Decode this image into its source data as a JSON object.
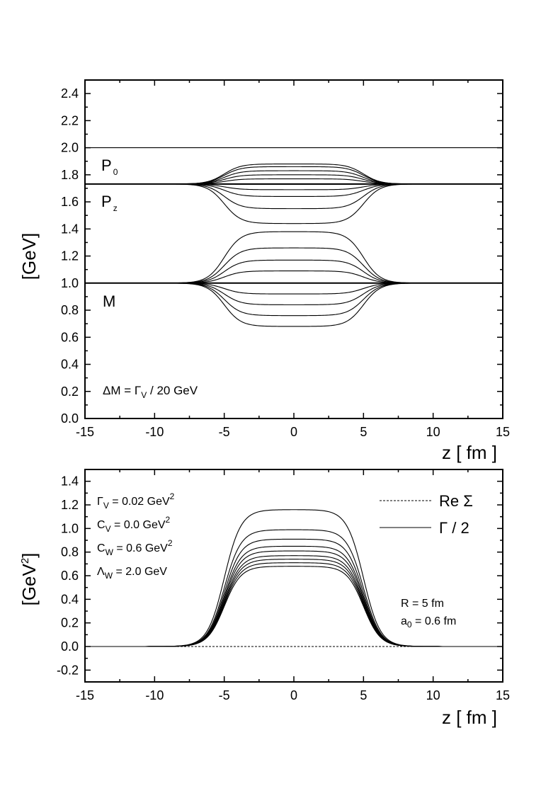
{
  "chart_data": [
    {
      "type": "line",
      "xlabel": "z [ fm ]",
      "ylabel": "[GeV]",
      "xlim": [
        -15,
        15
      ],
      "ylim": [
        0.0,
        2.5
      ],
      "xticks": [
        "-15",
        "-10",
        "-5",
        "0",
        "5",
        "10",
        "15"
      ],
      "yticks": [
        "0.0",
        "0.2",
        "0.4",
        "0.6",
        "0.8",
        "1.0",
        "1.2",
        "1.4",
        "1.6",
        "1.8",
        "2.0",
        "2.2",
        "2.4"
      ],
      "legend": "none",
      "grid": false,
      "profile": {
        "R": 5,
        "a0": 0.6
      },
      "series": [
        {
          "group": "P0",
          "y_outside": 2.0,
          "y_center": 2.0,
          "style": "thin"
        },
        {
          "group": "P0",
          "y_outside": 1.732,
          "y_center": 1.88,
          "style": "thin"
        },
        {
          "group": "P0",
          "y_outside": 1.732,
          "y_center": 1.86,
          "style": "thin"
        },
        {
          "group": "P0",
          "y_outside": 1.732,
          "y_center": 1.83,
          "style": "thin"
        },
        {
          "group": "P0",
          "y_outside": 1.732,
          "y_center": 1.8,
          "style": "thin"
        },
        {
          "group": "P0",
          "y_outside": 1.732,
          "y_center": 1.77,
          "style": "thin"
        },
        {
          "group": "P0",
          "y_outside": 1.732,
          "y_center": 1.73,
          "style": "thin"
        },
        {
          "group": "P0",
          "y_outside": 1.732,
          "y_center": 1.69,
          "style": "thin"
        },
        {
          "group": "P0",
          "y_outside": 1.732,
          "y_center": 1.64,
          "style": "thin"
        },
        {
          "group": "P0",
          "y_outside": 1.732,
          "y_center": 1.55,
          "style": "thin"
        },
        {
          "group": "P0",
          "y_outside": 1.732,
          "y_center": 1.44,
          "style": "thin"
        },
        {
          "group": "Pz",
          "y_outside": 1.732,
          "y_center": 1.732,
          "style": "bold"
        },
        {
          "group": "M",
          "y_outside": 1.0,
          "y_center": 1.38,
          "style": "thin"
        },
        {
          "group": "M",
          "y_outside": 1.0,
          "y_center": 1.26,
          "style": "thin"
        },
        {
          "group": "M",
          "y_outside": 1.0,
          "y_center": 1.17,
          "style": "thin"
        },
        {
          "group": "M",
          "y_outside": 1.0,
          "y_center": 1.09,
          "style": "thin"
        },
        {
          "group": "M",
          "y_outside": 1.0,
          "y_center": 1.0,
          "style": "thin"
        },
        {
          "group": "M",
          "y_outside": 1.0,
          "y_center": 0.92,
          "style": "thin"
        },
        {
          "group": "M",
          "y_outside": 1.0,
          "y_center": 0.84,
          "style": "thin"
        },
        {
          "group": "M",
          "y_outside": 1.0,
          "y_center": 0.76,
          "style": "thin"
        },
        {
          "group": "M",
          "y_outside": 1.0,
          "y_center": 0.68,
          "style": "thin"
        },
        {
          "group": "M",
          "y_outside": 1.0,
          "y_center": 1.0,
          "style": "bold"
        }
      ],
      "labels": {
        "p0_main": "P",
        "p0_sub": "0",
        "pz_main": "P",
        "pz_sub": "z",
        "m": "M",
        "delta_main": "ΔM = Γ",
        "delta_sub": "V",
        "delta_tail": " / 20 GeV"
      }
    },
    {
      "type": "line",
      "xlabel": "z [ fm ]",
      "ylabel_main": "[GeV",
      "ylabel_sup": "2",
      "ylabel_tail": "]",
      "xlim": [
        -15,
        15
      ],
      "ylim": [
        -0.3,
        1.5
      ],
      "xticks": [
        "-15",
        "-10",
        "-5",
        "0",
        "5",
        "10",
        "15"
      ],
      "yticks": [
        "-0.2",
        "0.0",
        "0.2",
        "0.4",
        "0.6",
        "0.8",
        "1.0",
        "1.2",
        "1.4"
      ],
      "legend": "top-right",
      "grid": false,
      "profile": {
        "R": 5,
        "a0": 0.6
      },
      "series": [
        {
          "role": "re_sigma",
          "y_outside": 0.0,
          "y_center": 0.0,
          "style": "dashed"
        },
        {
          "role": "gamma_half",
          "y_outside": 0.0,
          "y_center": 1.16,
          "style": "thin"
        },
        {
          "role": "gamma_half",
          "y_outside": 0.0,
          "y_center": 0.99,
          "style": "thin"
        },
        {
          "role": "gamma_half",
          "y_outside": 0.0,
          "y_center": 0.91,
          "style": "thin"
        },
        {
          "role": "gamma_half",
          "y_outside": 0.0,
          "y_center": 0.85,
          "style": "thin"
        },
        {
          "role": "gamma_half",
          "y_outside": 0.0,
          "y_center": 0.81,
          "style": "thin"
        },
        {
          "role": "gamma_half",
          "y_outside": 0.0,
          "y_center": 0.77,
          "style": "thin"
        },
        {
          "role": "gamma_half",
          "y_outside": 0.0,
          "y_center": 0.74,
          "style": "thin"
        },
        {
          "role": "gamma_half",
          "y_outside": 0.0,
          "y_center": 0.71,
          "style": "thin"
        },
        {
          "role": "gamma_half",
          "y_outside": 0.0,
          "y_center": 0.68,
          "style": "thin"
        }
      ],
      "legend_entries": {
        "re_sigma": "Re Σ",
        "gamma_half": "Γ / 2"
      },
      "params": [
        {
          "sym": "Γ",
          "sub": "V",
          "val": " = 0.02 GeV",
          "sup": "2"
        },
        {
          "sym": "C",
          "sub": "V",
          "val": " = 0.0 GeV",
          "sup": "2"
        },
        {
          "sym": "C",
          "sub": "W",
          "val": " = 0.6 GeV",
          "sup": "2"
        },
        {
          "sym": "Λ",
          "sub": "W",
          "val": " = 2.0 GeV",
          "sup": ""
        }
      ],
      "right_notes": {
        "r_line": "R = 5 fm",
        "a_main": "a",
        "a_sub": "0",
        "a_tail": " = 0.6 fm"
      }
    }
  ]
}
